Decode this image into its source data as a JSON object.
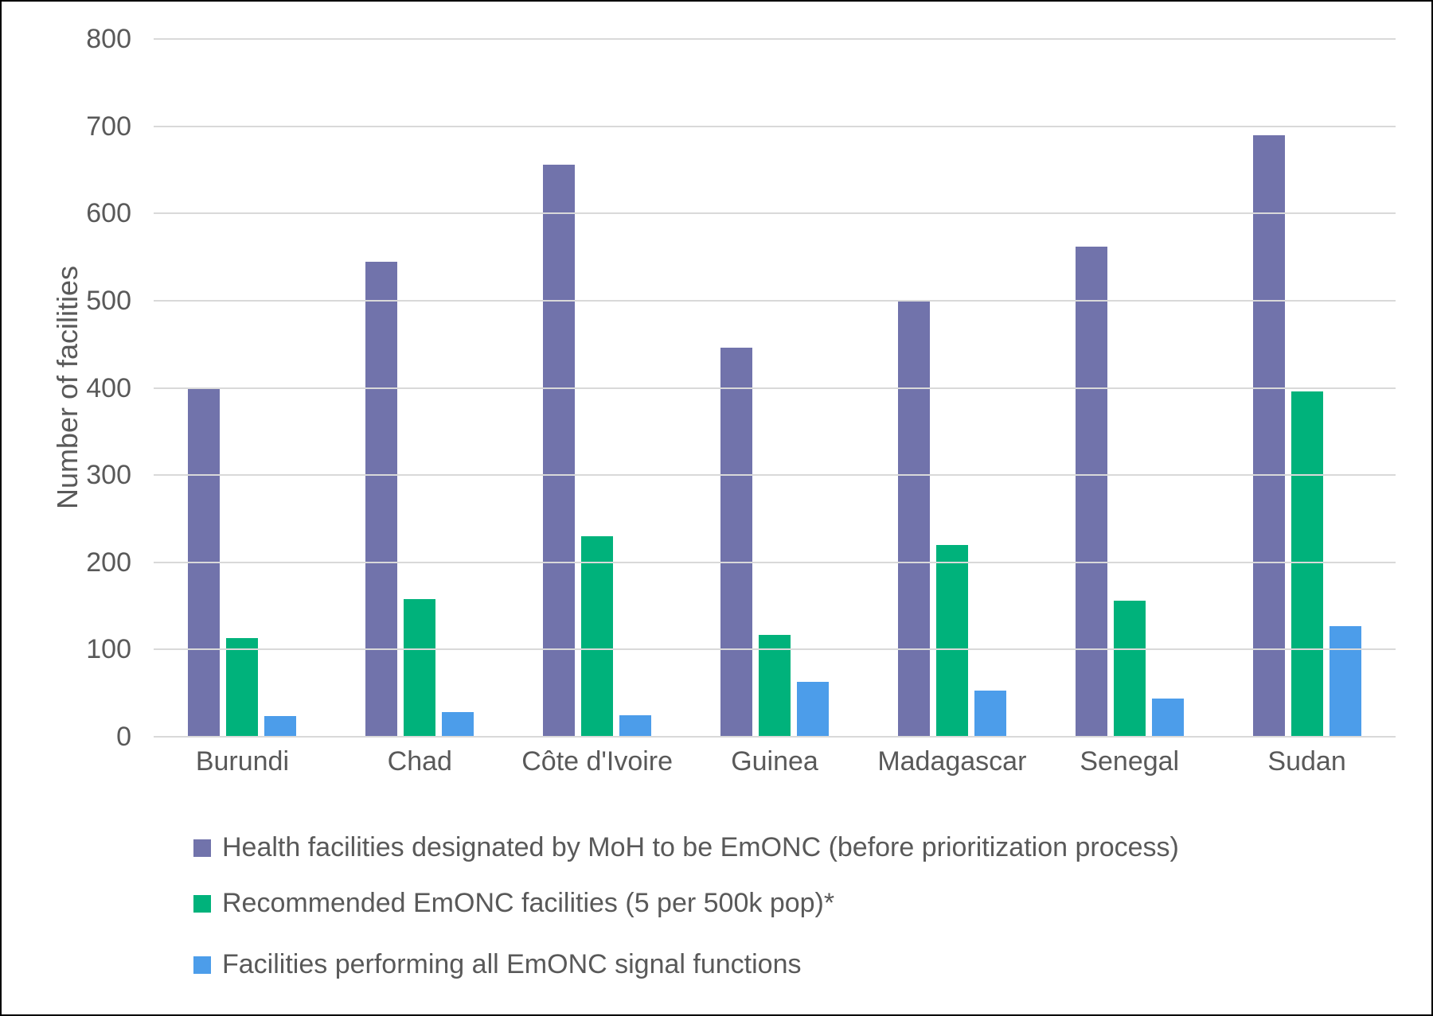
{
  "chart_data": {
    "type": "bar",
    "title": "",
    "xlabel": "",
    "ylabel": "Number of facilities",
    "categories": [
      "Burundi",
      "Chad",
      "Côte d'Ivoire",
      "Guinea",
      "Madagascar",
      "Senegal",
      "Sudan"
    ],
    "series": [
      {
        "name": "Health facilities designated by MoH to be EmONC (before prioritization process)",
        "color": "#7173AB",
        "values": [
          400,
          545,
          656,
          446,
          499,
          562,
          690
        ]
      },
      {
        "name": "Recommended EmONC facilities (5 per 500k pop)*",
        "color": "#00B27B",
        "values": [
          113,
          158,
          230,
          117,
          220,
          156,
          396
        ]
      },
      {
        "name": "Facilities performing all EmONC signal functions",
        "color": "#4C9DEA",
        "values": [
          24,
          28,
          25,
          63,
          53,
          44,
          127
        ]
      }
    ],
    "ylim": [
      0,
      800
    ],
    "ytick_interval": 100,
    "yticks": [
      0,
      100,
      200,
      300,
      400,
      500,
      600,
      700,
      800
    ],
    "grid": "horizontal",
    "legend_position": "bottom-left"
  },
  "colors": {
    "gridline": "#d9d9d9",
    "axis_text": "#595959",
    "background": "#ffffff",
    "frame_border": "#000000"
  }
}
